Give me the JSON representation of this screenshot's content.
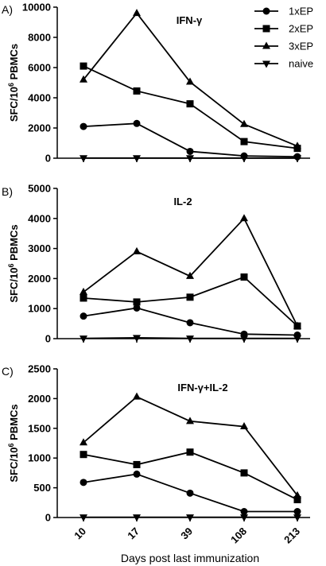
{
  "chart_data": [
    {
      "type": "line",
      "panel_label": "A)",
      "title": "IFN-γ",
      "ylabel": "SFC/10",
      "ylabel_sup": "6",
      "ylabel_suffix": " PBMCs",
      "xlabel": "",
      "categories": [
        "10",
        "17",
        "39",
        "108",
        "213"
      ],
      "ylim": [
        0,
        10000
      ],
      "yticks": [
        0,
        2000,
        4000,
        6000,
        8000,
        10000
      ],
      "series": [
        {
          "name": "1xEP",
          "marker": "circle",
          "values": [
            2100,
            2300,
            450,
            150,
            100
          ]
        },
        {
          "name": "2xEP",
          "marker": "square",
          "values": [
            6100,
            4450,
            3600,
            1100,
            650
          ]
        },
        {
          "name": "3xEP",
          "marker": "triangle-up",
          "values": [
            5200,
            9600,
            5050,
            2250,
            800
          ]
        },
        {
          "name": "naive",
          "marker": "triangle-down",
          "values": [
            10,
            10,
            10,
            10,
            10
          ]
        }
      ],
      "legend": {
        "placement": "top-right",
        "show": true
      }
    },
    {
      "type": "line",
      "panel_label": "B)",
      "title": "IL-2",
      "ylabel": "SFC/10",
      "ylabel_sup": "6",
      "ylabel_suffix": " PBMCs",
      "xlabel": "",
      "categories": [
        "10",
        "17",
        "39",
        "108",
        "213"
      ],
      "ylim": [
        0,
        5000
      ],
      "yticks": [
        0,
        1000,
        2000,
        3000,
        4000,
        5000
      ],
      "series": [
        {
          "name": "1xEP",
          "marker": "circle",
          "values": [
            750,
            1020,
            530,
            150,
            120
          ]
        },
        {
          "name": "2xEP",
          "marker": "square",
          "values": [
            1350,
            1220,
            1380,
            2050,
            420
          ]
        },
        {
          "name": "3xEP",
          "marker": "triangle-up",
          "values": [
            1550,
            2900,
            2080,
            4000,
            420
          ]
        },
        {
          "name": "naive",
          "marker": "triangle-down",
          "values": [
            10,
            30,
            10,
            10,
            10
          ]
        }
      ],
      "legend": {
        "show": false
      }
    },
    {
      "type": "line",
      "panel_label": "C)",
      "title": "IFN-γ+IL-2",
      "ylabel": "SFC/10",
      "ylabel_sup": "6",
      "ylabel_suffix": " PBMCs",
      "xlabel": "Days post last immunization",
      "categories": [
        "10",
        "17",
        "39",
        "108",
        "213"
      ],
      "ylim": [
        0,
        2500
      ],
      "yticks": [
        0,
        500,
        1000,
        1500,
        2000,
        2500
      ],
      "series": [
        {
          "name": "1xEP",
          "marker": "circle",
          "values": [
            590,
            730,
            410,
            100,
            100
          ]
        },
        {
          "name": "2xEP",
          "marker": "square",
          "values": [
            1060,
            890,
            1100,
            750,
            300
          ]
        },
        {
          "name": "3xEP",
          "marker": "triangle-up",
          "values": [
            1260,
            2030,
            1620,
            1530,
            370
          ]
        },
        {
          "name": "naive",
          "marker": "triangle-down",
          "values": [
            5,
            5,
            5,
            5,
            5
          ]
        }
      ],
      "legend": {
        "show": false
      }
    }
  ]
}
